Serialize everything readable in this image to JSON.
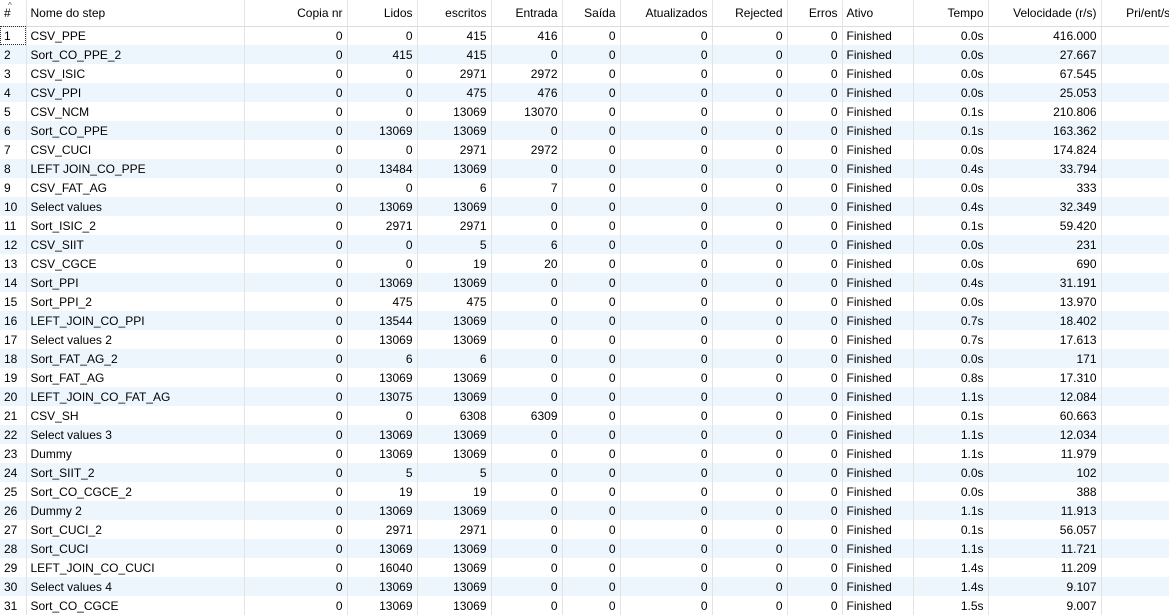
{
  "table": {
    "sort_icon": "sort-ascending-icon",
    "columns": [
      {
        "label": "#",
        "align": "l"
      },
      {
        "label": "Nome do step",
        "align": "l"
      },
      {
        "label": "Copia nr",
        "align": "r"
      },
      {
        "label": "Lidos",
        "align": "r"
      },
      {
        "label": "escritos",
        "align": "r"
      },
      {
        "label": "Entrada",
        "align": "r"
      },
      {
        "label": "Saída",
        "align": "r"
      },
      {
        "label": "Atualizados",
        "align": "r"
      },
      {
        "label": "Rejected",
        "align": "r"
      },
      {
        "label": "Erros",
        "align": "r"
      },
      {
        "label": "Ativo",
        "align": "l"
      },
      {
        "label": "Tempo",
        "align": "r"
      },
      {
        "label": "Velocidade (r/s)",
        "align": "r"
      },
      {
        "label": "Pri/ent/sai",
        "align": "r"
      }
    ],
    "rows": [
      [
        "1",
        "CSV_PPE",
        "0",
        "0",
        "415",
        "416",
        "0",
        "0",
        "0",
        "0",
        "Finished",
        "0.0s",
        "416.000",
        "-"
      ],
      [
        "2",
        "Sort_CO_PPE_2",
        "0",
        "415",
        "415",
        "0",
        "0",
        "0",
        "0",
        "0",
        "Finished",
        "0.0s",
        "27.667",
        "-"
      ],
      [
        "3",
        "CSV_ISIC",
        "0",
        "0",
        "2971",
        "2972",
        "0",
        "0",
        "0",
        "0",
        "Finished",
        "0.0s",
        "67.545",
        "-"
      ],
      [
        "4",
        "CSV_PPI",
        "0",
        "0",
        "475",
        "476",
        "0",
        "0",
        "0",
        "0",
        "Finished",
        "0.0s",
        "25.053",
        "-"
      ],
      [
        "5",
        "CSV_NCM",
        "0",
        "0",
        "13069",
        "13070",
        "0",
        "0",
        "0",
        "0",
        "Finished",
        "0.1s",
        "210.806",
        "-"
      ],
      [
        "6",
        "Sort_CO_PPE",
        "0",
        "13069",
        "13069",
        "0",
        "0",
        "0",
        "0",
        "0",
        "Finished",
        "0.1s",
        "163.362",
        "-"
      ],
      [
        "7",
        "CSV_CUCI",
        "0",
        "0",
        "2971",
        "2972",
        "0",
        "0",
        "0",
        "0",
        "Finished",
        "0.0s",
        "174.824",
        "-"
      ],
      [
        "8",
        "LEFT JOIN_CO_PPE",
        "0",
        "13484",
        "13069",
        "0",
        "0",
        "0",
        "0",
        "0",
        "Finished",
        "0.4s",
        "33.794",
        "-"
      ],
      [
        "9",
        "CSV_FAT_AG",
        "0",
        "0",
        "6",
        "7",
        "0",
        "0",
        "0",
        "0",
        "Finished",
        "0.0s",
        "333",
        "-"
      ],
      [
        "10",
        "Select values",
        "0",
        "13069",
        "13069",
        "0",
        "0",
        "0",
        "0",
        "0",
        "Finished",
        "0.4s",
        "32.349",
        "-"
      ],
      [
        "11",
        "Sort_ISIC_2",
        "0",
        "2971",
        "2971",
        "0",
        "0",
        "0",
        "0",
        "0",
        "Finished",
        "0.1s",
        "59.420",
        "-"
      ],
      [
        "12",
        "CSV_SIIT",
        "0",
        "0",
        "5",
        "6",
        "0",
        "0",
        "0",
        "0",
        "Finished",
        "0.0s",
        "231",
        "-"
      ],
      [
        "13",
        "CSV_CGCE",
        "0",
        "0",
        "19",
        "20",
        "0",
        "0",
        "0",
        "0",
        "Finished",
        "0.0s",
        "690",
        "-"
      ],
      [
        "14",
        "Sort_PPI",
        "0",
        "13069",
        "13069",
        "0",
        "0",
        "0",
        "0",
        "0",
        "Finished",
        "0.4s",
        "31.191",
        "-"
      ],
      [
        "15",
        "Sort_PPI_2",
        "0",
        "475",
        "475",
        "0",
        "0",
        "0",
        "0",
        "0",
        "Finished",
        "0.0s",
        "13.970",
        "-"
      ],
      [
        "16",
        "LEFT_JOIN_CO_PPI",
        "0",
        "13544",
        "13069",
        "0",
        "0",
        "0",
        "0",
        "0",
        "Finished",
        "0.7s",
        "18.402",
        "-"
      ],
      [
        "17",
        "Select values 2",
        "0",
        "13069",
        "13069",
        "0",
        "0",
        "0",
        "0",
        "0",
        "Finished",
        "0.7s",
        "17.613",
        "-"
      ],
      [
        "18",
        "Sort_FAT_AG_2",
        "0",
        "6",
        "6",
        "0",
        "0",
        "0",
        "0",
        "0",
        "Finished",
        "0.0s",
        "171",
        "-"
      ],
      [
        "19",
        "Sort_FAT_AG",
        "0",
        "13069",
        "13069",
        "0",
        "0",
        "0",
        "0",
        "0",
        "Finished",
        "0.8s",
        "17.310",
        "-"
      ],
      [
        "20",
        "LEFT_JOIN_CO_FAT_AG",
        "0",
        "13075",
        "13069",
        "0",
        "0",
        "0",
        "0",
        "0",
        "Finished",
        "1.1s",
        "12.084",
        "-"
      ],
      [
        "21",
        "CSV_SH",
        "0",
        "0",
        "6308",
        "6309",
        "0",
        "0",
        "0",
        "0",
        "Finished",
        "0.1s",
        "60.663",
        "-"
      ],
      [
        "22",
        "Select values 3",
        "0",
        "13069",
        "13069",
        "0",
        "0",
        "0",
        "0",
        "0",
        "Finished",
        "1.1s",
        "12.034",
        "-"
      ],
      [
        "23",
        "Dummy",
        "0",
        "13069",
        "13069",
        "0",
        "0",
        "0",
        "0",
        "0",
        "Finished",
        "1.1s",
        "11.979",
        "-"
      ],
      [
        "24",
        "Sort_SIIT_2",
        "0",
        "5",
        "5",
        "0",
        "0",
        "0",
        "0",
        "0",
        "Finished",
        "0.0s",
        "102",
        "-"
      ],
      [
        "25",
        "Sort_CO_CGCE_2",
        "0",
        "19",
        "19",
        "0",
        "0",
        "0",
        "0",
        "0",
        "Finished",
        "0.0s",
        "388",
        "-"
      ],
      [
        "26",
        "Dummy 2",
        "0",
        "13069",
        "13069",
        "0",
        "0",
        "0",
        "0",
        "0",
        "Finished",
        "1.1s",
        "11.913",
        "-"
      ],
      [
        "27",
        "Sort_CUCI_2",
        "0",
        "2971",
        "2971",
        "0",
        "0",
        "0",
        "0",
        "0",
        "Finished",
        "0.1s",
        "56.057",
        "-"
      ],
      [
        "28",
        "Sort_CUCI",
        "0",
        "13069",
        "13069",
        "0",
        "0",
        "0",
        "0",
        "0",
        "Finished",
        "1.1s",
        "11.721",
        "-"
      ],
      [
        "29",
        "LEFT_JOIN_CO_CUCI",
        "0",
        "16040",
        "13069",
        "0",
        "0",
        "0",
        "0",
        "0",
        "Finished",
        "1.4s",
        "11.209",
        "-"
      ],
      [
        "30",
        "Select values 4",
        "0",
        "13069",
        "13069",
        "0",
        "0",
        "0",
        "0",
        "0",
        "Finished",
        "1.4s",
        "9.107",
        "-"
      ],
      [
        "31",
        "Sort_CO_CGCE",
        "0",
        "13069",
        "13069",
        "0",
        "0",
        "0",
        "0",
        "0",
        "Finished",
        "1.5s",
        "9.007",
        "-"
      ]
    ]
  }
}
